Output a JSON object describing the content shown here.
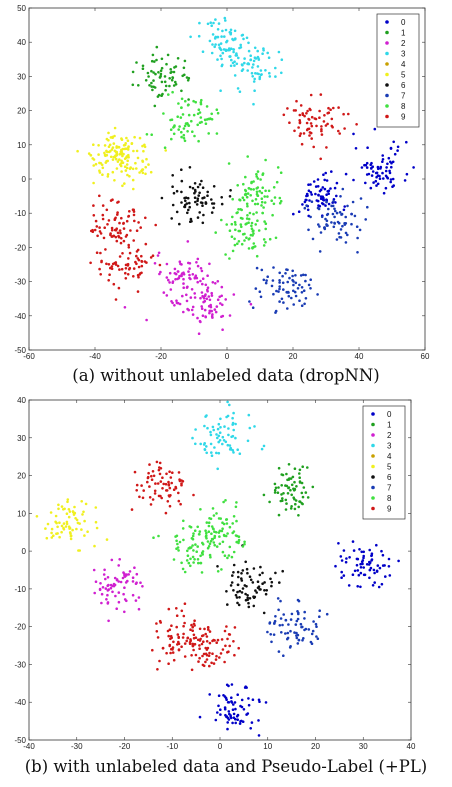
{
  "chart_data": [
    {
      "type": "scatter",
      "caption": "(a) without unlabeled data (dropNN)",
      "xlim": [
        -60,
        60
      ],
      "ylim": [
        -50,
        50
      ],
      "xticks": [
        -60,
        -40,
        -20,
        0,
        20,
        40,
        60
      ],
      "yticks": [
        -50,
        -40,
        -30,
        -20,
        -10,
        0,
        10,
        20,
        30,
        40,
        50
      ],
      "grid": false,
      "legend_position": "top-right",
      "series": [
        {
          "name": "0",
          "color": "#0000c8",
          "clusters": [
            {
              "x": 47,
              "y": 3
            },
            {
              "x": 28,
              "y": -5
            }
          ]
        },
        {
          "name": "1",
          "color": "#20a020",
          "clusters": [
            {
              "x": -19,
              "y": 30
            }
          ]
        },
        {
          "name": "2",
          "color": "#d020d0",
          "clusters": [
            {
              "x": -13,
              "y": -29
            },
            {
              "x": -6,
              "y": -36
            }
          ]
        },
        {
          "name": "3",
          "color": "#30d8e8",
          "clusters": [
            {
              "x": -1,
              "y": 40
            },
            {
              "x": 8,
              "y": 33
            }
          ]
        },
        {
          "name": "4",
          "color": "#c8a000",
          "clusters": []
        },
        {
          "name": "5",
          "color": "#f0f020",
          "clusters": [
            {
              "x": -35,
              "y": 8
            },
            {
              "x": -30,
              "y": 5
            }
          ]
        },
        {
          "name": "6",
          "color": "#101010",
          "clusters": [
            {
              "x": -10,
              "y": -5
            }
          ]
        },
        {
          "name": "7",
          "color": "#1a3cb4",
          "clusters": [
            {
              "x": 17,
              "y": -32
            },
            {
              "x": 33,
              "y": -12
            }
          ]
        },
        {
          "name": "8",
          "color": "#40e040",
          "clusters": [
            {
              "x": 6,
              "y": -15
            },
            {
              "x": 9,
              "y": -4
            },
            {
              "x": -12,
              "y": 17
            }
          ]
        },
        {
          "name": "9",
          "color": "#d01818",
          "clusters": [
            {
              "x": -33,
              "y": -13
            },
            {
              "x": -31,
              "y": -25
            },
            {
              "x": 27,
              "y": 17
            }
          ]
        }
      ]
    },
    {
      "type": "scatter",
      "caption": "(b) with unlabeled data and Pseudo-Label (+PL)",
      "xlim": [
        -40,
        40
      ],
      "ylim": [
        -50,
        40
      ],
      "xticks": [
        -40,
        -30,
        -20,
        -10,
        0,
        10,
        20,
        30,
        40
      ],
      "yticks": [
        -50,
        -40,
        -30,
        -20,
        -10,
        0,
        10,
        20,
        30,
        40
      ],
      "grid": false,
      "legend_position": "top-right",
      "series": [
        {
          "name": "0",
          "color": "#0000c8",
          "clusters": [
            {
              "x": 30,
              "y": -3
            },
            {
              "x": 3,
              "y": -42
            }
          ]
        },
        {
          "name": "1",
          "color": "#20a020",
          "clusters": [
            {
              "x": 15,
              "y": 16
            }
          ]
        },
        {
          "name": "2",
          "color": "#d020d0",
          "clusters": [
            {
              "x": -21,
              "y": -9
            }
          ]
        },
        {
          "name": "3",
          "color": "#30d8e8",
          "clusters": [
            {
              "x": 1,
              "y": 31
            }
          ]
        },
        {
          "name": "4",
          "color": "#c8a000",
          "clusters": []
        },
        {
          "name": "5",
          "color": "#f0f020",
          "clusters": [
            {
              "x": -31,
              "y": 7
            }
          ]
        },
        {
          "name": "6",
          "color": "#101010",
          "clusters": [
            {
              "x": 6,
              "y": -9
            }
          ]
        },
        {
          "name": "7",
          "color": "#1a3cb4",
          "clusters": [
            {
              "x": 16,
              "y": -20
            }
          ]
        },
        {
          "name": "8",
          "color": "#40e040",
          "clusters": [
            {
              "x": 0,
              "y": 5
            },
            {
              "x": -5,
              "y": 1
            }
          ]
        },
        {
          "name": "9",
          "color": "#d01818",
          "clusters": [
            {
              "x": -12,
              "y": 17
            },
            {
              "x": -9,
              "y": -23
            },
            {
              "x": -3,
              "y": -25
            }
          ]
        }
      ]
    }
  ]
}
